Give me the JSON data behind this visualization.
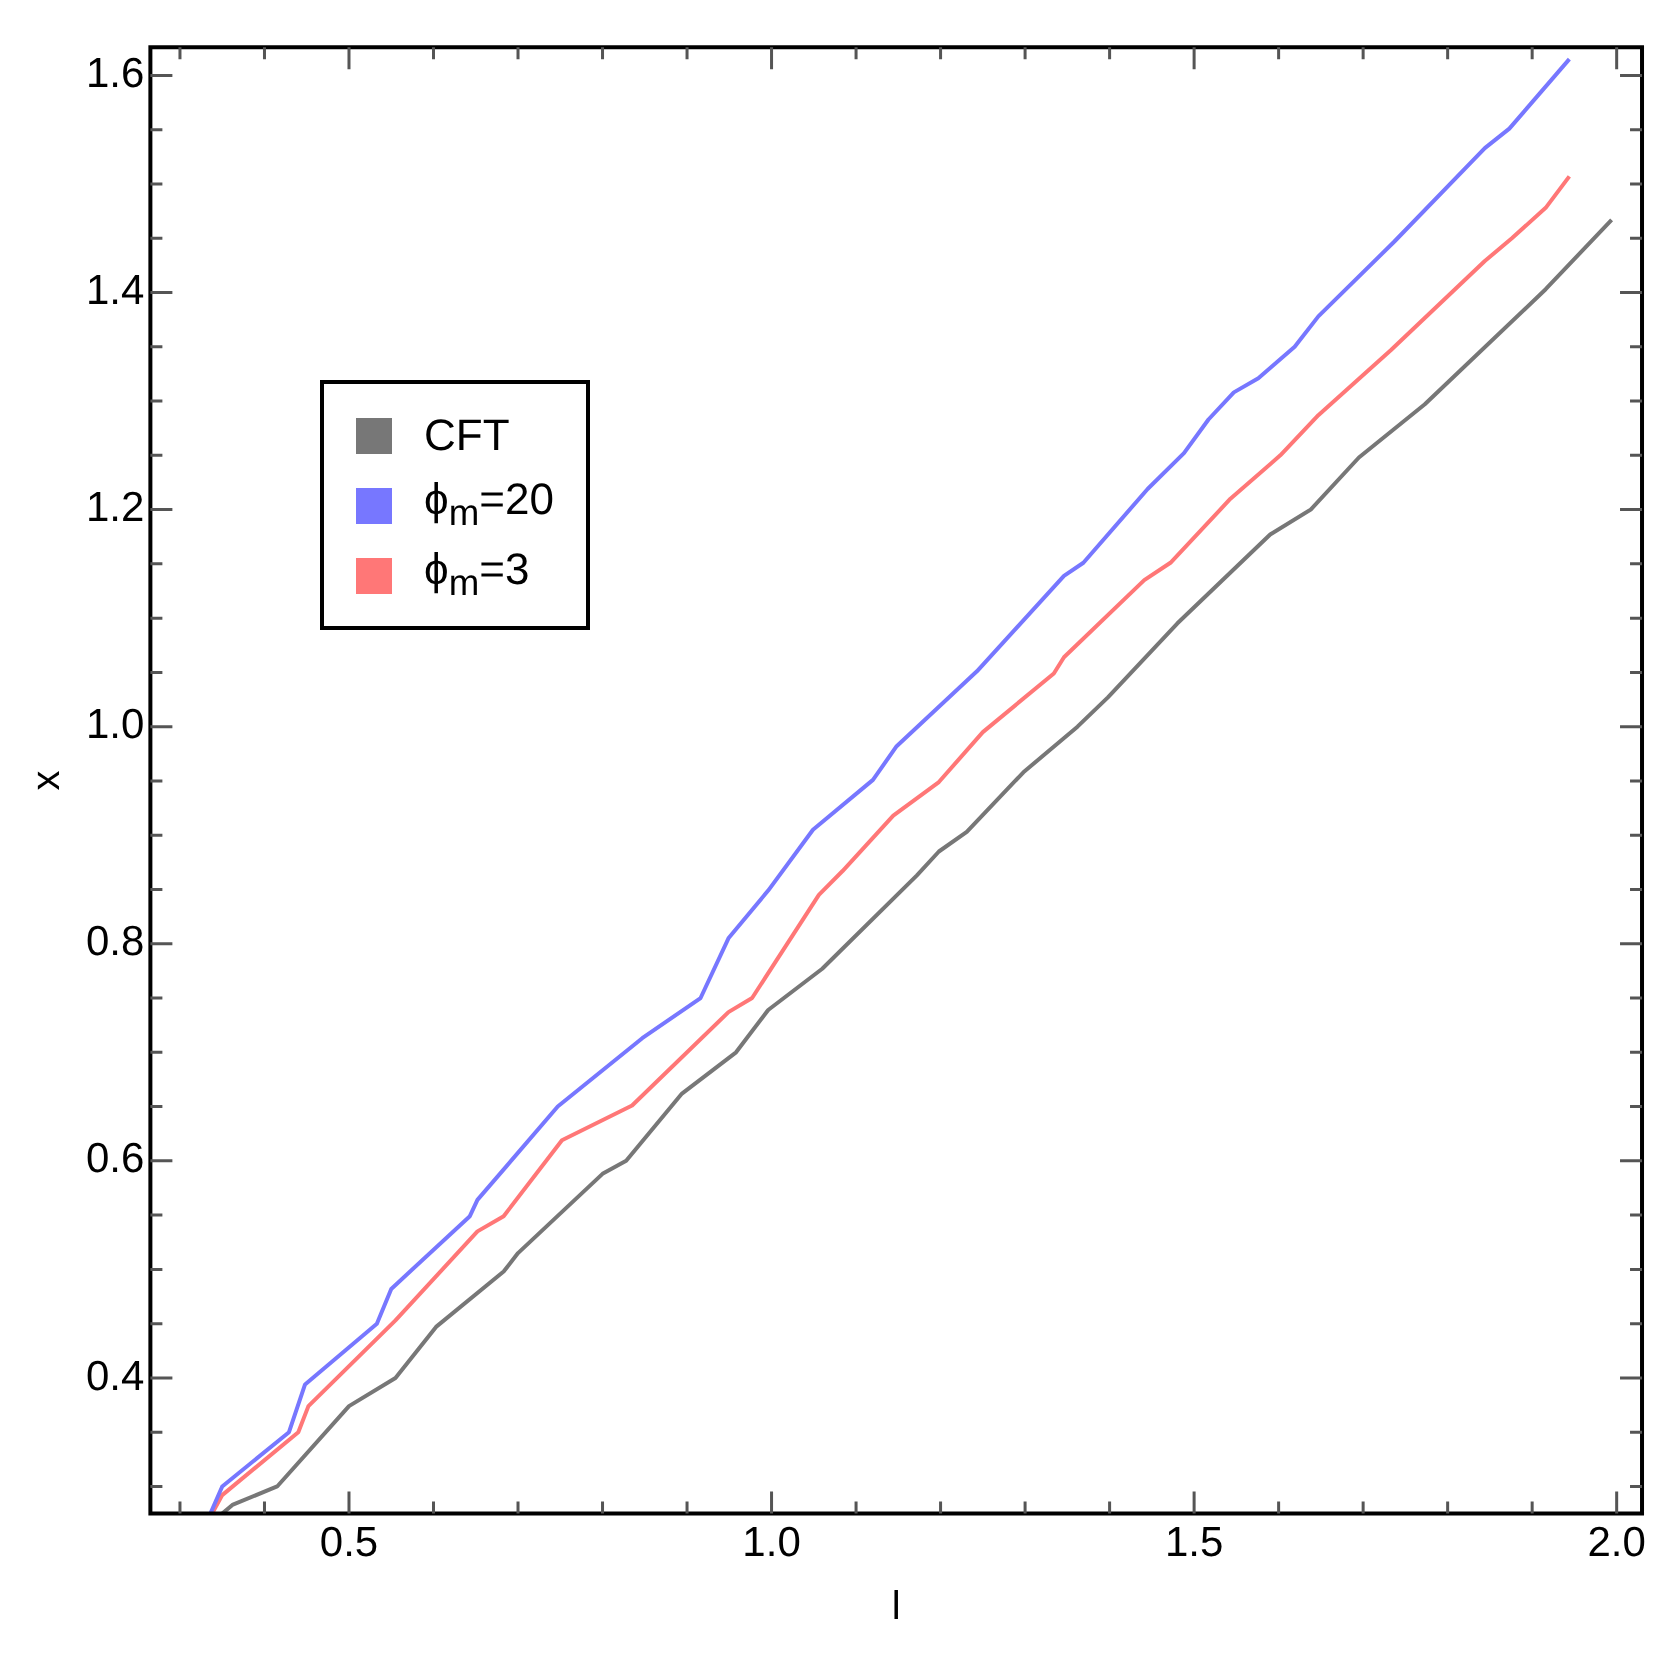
{
  "chart_data": {
    "type": "line",
    "xlabel": "l",
    "ylabel": "x",
    "xlim": [
      0.265,
      2.03
    ],
    "ylim": [
      0.275,
      1.626
    ],
    "xticks": [
      {
        "value": 0.3,
        "label": null
      },
      {
        "value": 0.4,
        "label": null
      },
      0.5,
      {
        "value": 0.6,
        "label": null
      },
      {
        "value": 0.7,
        "label": null
      },
      {
        "value": 0.8,
        "label": null
      },
      {
        "value": 0.9,
        "label": null
      },
      {
        "value": 1,
        "label": "1.0"
      },
      {
        "value": 1.1,
        "label": null
      },
      {
        "value": 1.2,
        "label": null
      },
      {
        "value": 1.3,
        "label": null
      },
      {
        "value": 1.4,
        "label": null
      },
      1.5,
      {
        "value": 1.6,
        "label": null
      },
      {
        "value": 1.7,
        "label": null
      },
      {
        "value": 1.8,
        "label": null
      },
      {
        "value": 1.9,
        "label": null
      },
      {
        "value": 2,
        "label": "2.0"
      }
    ],
    "yticks": [
      {
        "value": 0.3,
        "label": null
      },
      {
        "value": 0.35,
        "label": null
      },
      0.4,
      {
        "value": 0.45,
        "label": null
      },
      {
        "value": 0.5,
        "label": null
      },
      {
        "value": 0.55,
        "label": null
      },
      0.6,
      {
        "value": 0.65,
        "label": null
      },
      {
        "value": 0.7,
        "label": null
      },
      {
        "value": 0.75,
        "label": null
      },
      0.8,
      {
        "value": 0.85,
        "label": null
      },
      {
        "value": 0.9,
        "label": null
      },
      {
        "value": 0.95,
        "label": null
      },
      {
        "value": 1,
        "label": "1.0"
      },
      {
        "value": 1.05,
        "label": null
      },
      {
        "value": 1.1,
        "label": null
      },
      {
        "value": 1.15,
        "label": null
      },
      1.2,
      {
        "value": 1.25,
        "label": null
      },
      {
        "value": 1.3,
        "label": null
      },
      {
        "value": 1.35,
        "label": null
      },
      1.4,
      {
        "value": 1.45,
        "label": null
      },
      {
        "value": 1.5,
        "label": null
      },
      {
        "value": 1.55,
        "label": null
      },
      1.6
    ],
    "legend": "top left",
    "series": [
      {
        "name": "CFT",
        "color": "#777777",
        "x": [
          0.35,
          0.362,
          0.415,
          0.5,
          0.555,
          0.603,
          0.683,
          0.7,
          0.8,
          0.828,
          0.894,
          0.958,
          0.996,
          1.06,
          1.172,
          1.198,
          1.231,
          1.298,
          1.362,
          1.398,
          1.48,
          1.59,
          1.638,
          1.695,
          1.773,
          1.916,
          1.994
        ],
        "values": [
          0.275,
          0.283,
          0.3,
          0.374,
          0.4,
          0.447,
          0.498,
          0.515,
          0.588,
          0.6,
          0.662,
          0.7,
          0.739,
          0.777,
          0.863,
          0.885,
          0.903,
          0.958,
          1.0,
          1.027,
          1.095,
          1.177,
          1.2,
          1.248,
          1.297,
          1.403,
          1.467
        ]
      },
      {
        "name": "ϕ$_{m}$=20",
        "color": "#7777ff",
        "x": [
          0.336,
          0.35,
          0.429,
          0.448,
          0.533,
          0.55,
          0.643,
          0.652,
          0.747,
          0.847,
          0.916,
          0.949,
          0.996,
          1.049,
          1.12,
          1.148,
          1.243,
          1.346,
          1.369,
          1.445,
          1.488,
          1.517,
          1.547,
          1.576,
          1.619,
          1.647,
          1.737,
          1.844,
          1.873,
          1.944
        ],
        "values": [
          0.275,
          0.3,
          0.35,
          0.394,
          0.45,
          0.482,
          0.549,
          0.564,
          0.65,
          0.713,
          0.75,
          0.805,
          0.849,
          0.905,
          0.951,
          0.982,
          1.051,
          1.139,
          1.151,
          1.219,
          1.252,
          1.283,
          1.308,
          1.321,
          1.35,
          1.378,
          1.447,
          1.533,
          1.551,
          1.615
        ]
      },
      {
        "name": "ϕ$_{m}$=3",
        "color": "#ff7777",
        "x": [
          0.338,
          0.35,
          0.44,
          0.452,
          0.555,
          0.652,
          0.683,
          0.752,
          0.835,
          0.949,
          0.977,
          1.056,
          1.084,
          1.144,
          1.198,
          1.25,
          1.334,
          1.346,
          1.441,
          1.472,
          1.543,
          1.602,
          1.647,
          1.733,
          1.844,
          1.876,
          1.916,
          1.944
        ],
        "values": [
          0.275,
          0.292,
          0.35,
          0.374,
          0.453,
          0.535,
          0.549,
          0.619,
          0.651,
          0.737,
          0.75,
          0.845,
          0.867,
          0.918,
          0.949,
          0.995,
          1.049,
          1.064,
          1.135,
          1.151,
          1.21,
          1.25,
          1.287,
          1.347,
          1.429,
          1.45,
          1.478,
          1.507
        ]
      }
    ]
  }
}
